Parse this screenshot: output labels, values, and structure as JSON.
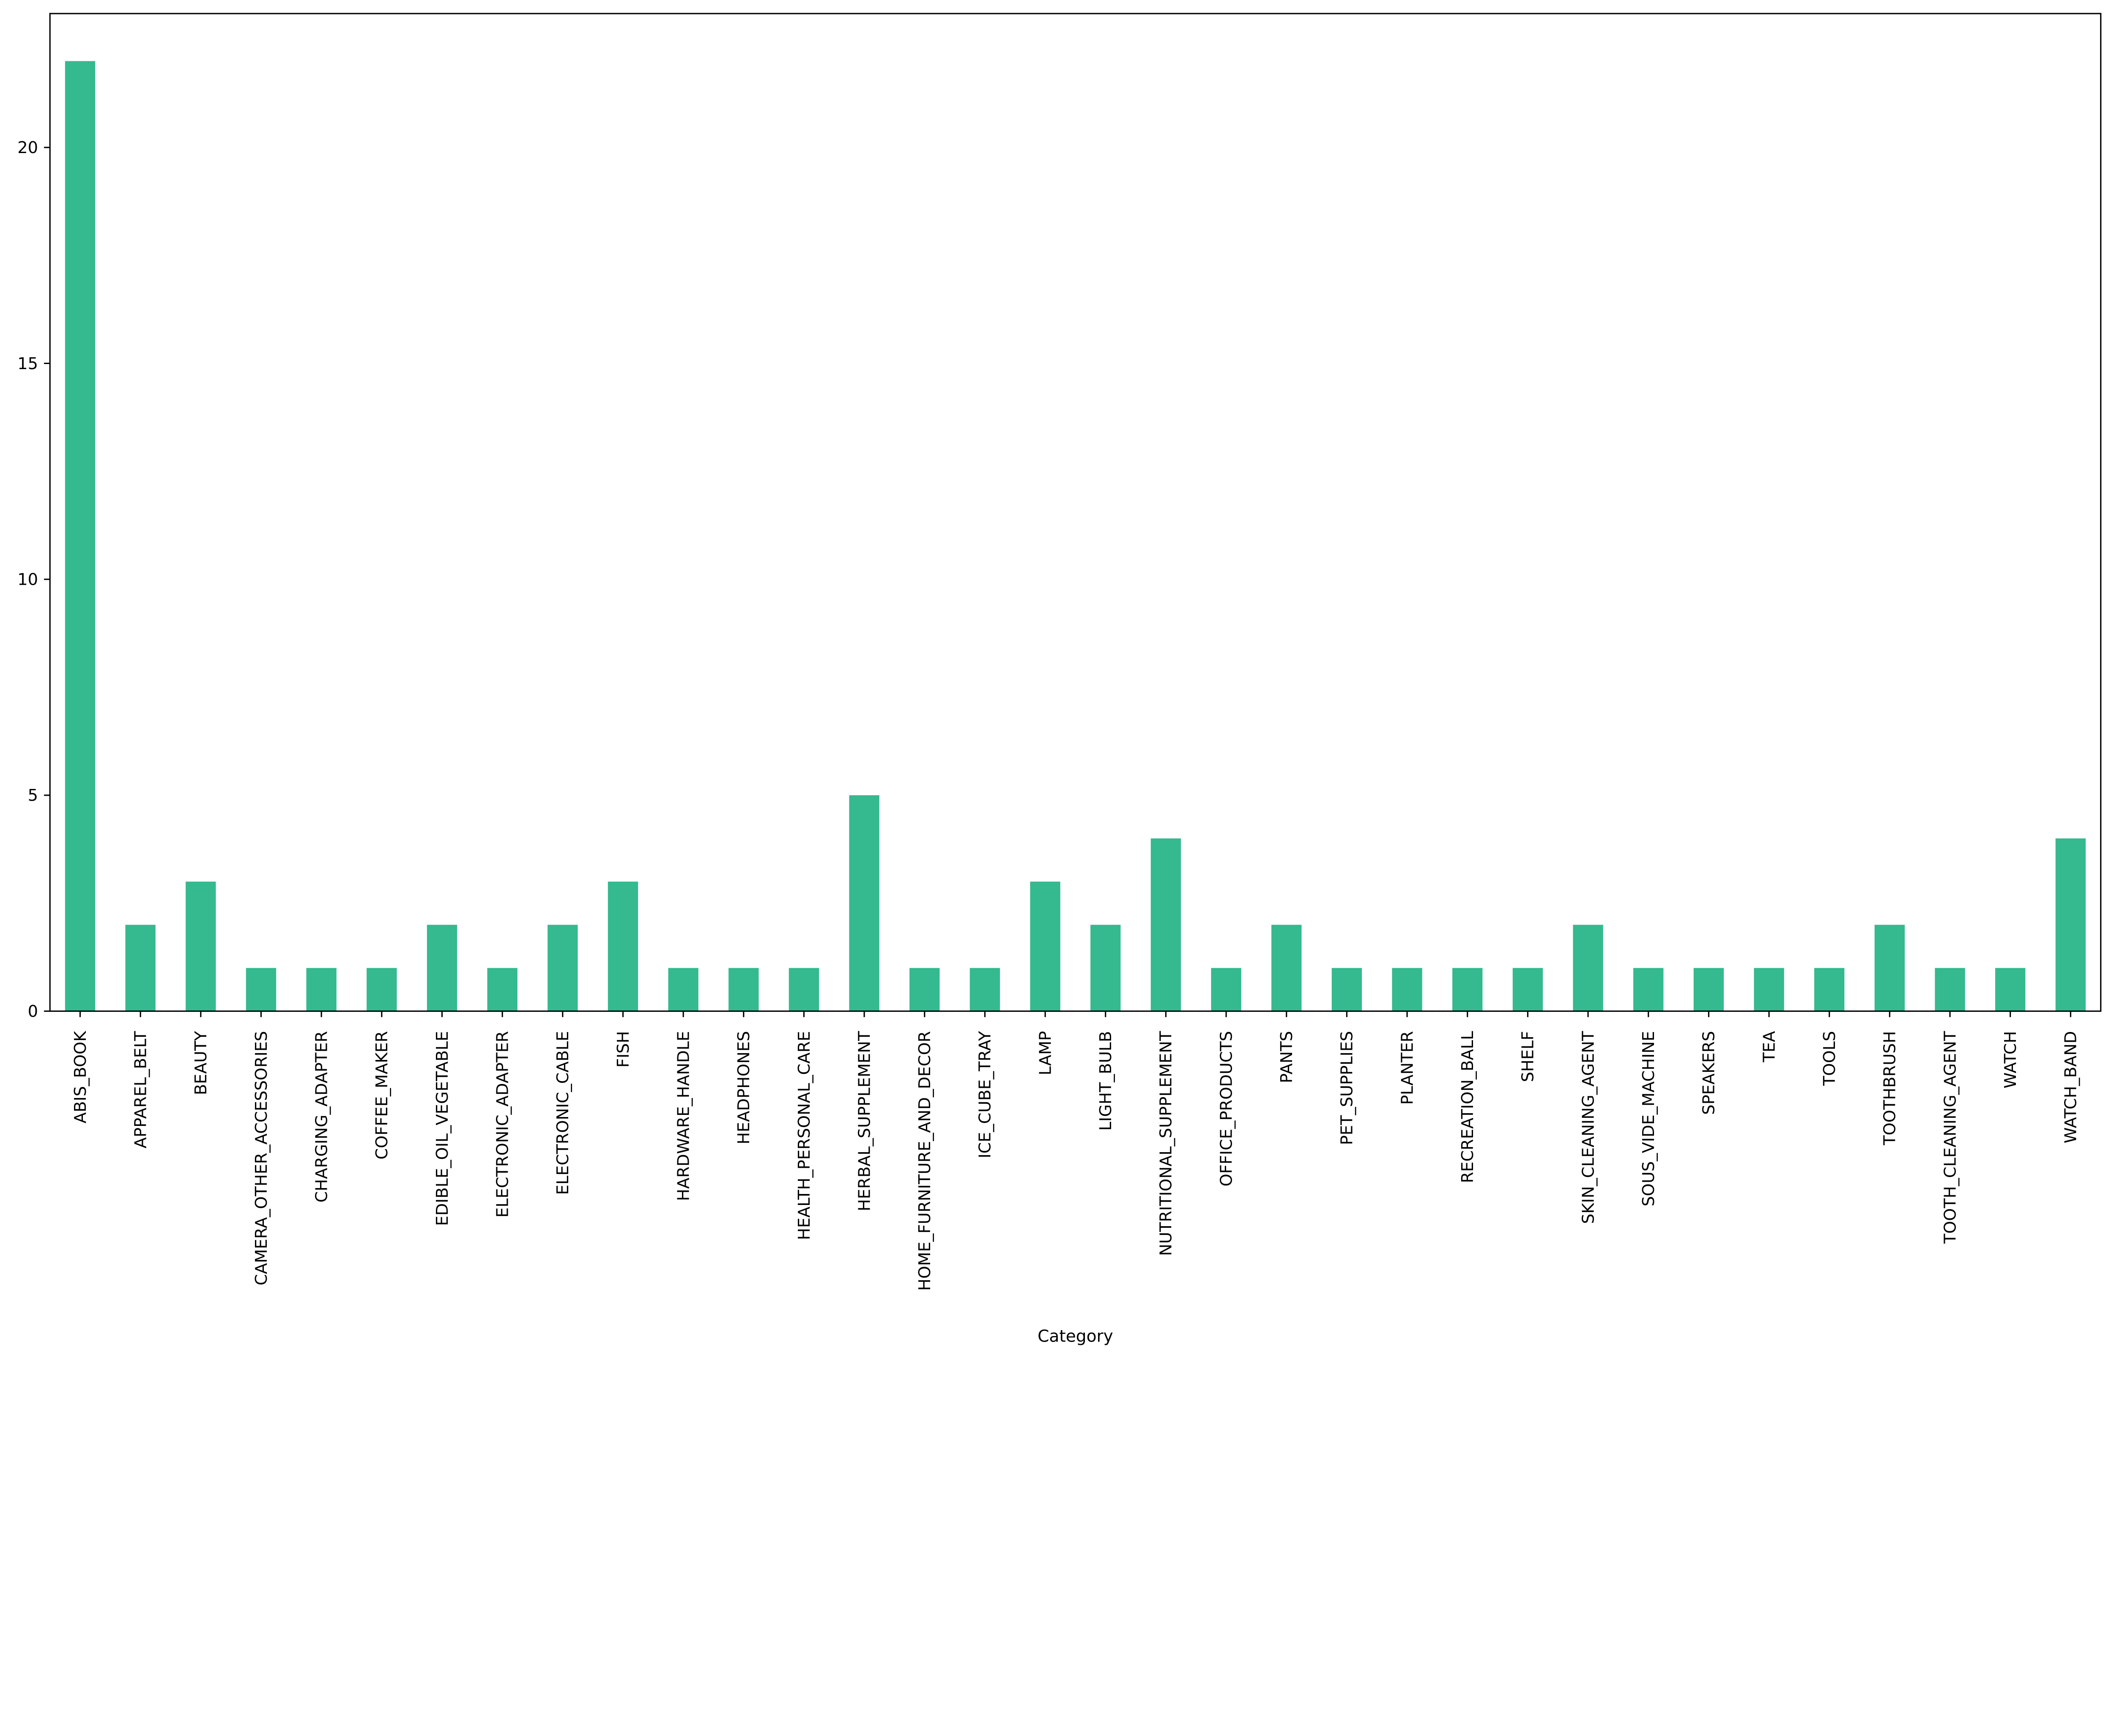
{
  "chart_data": {
    "type": "bar",
    "title": "",
    "xlabel": "Category",
    "ylabel": "",
    "ylim": [
      0,
      23.1
    ],
    "yticks": [
      0,
      5,
      10,
      15,
      20
    ],
    "grid": false,
    "bar_color": "#35b98f",
    "categories": [
      "ABIS_BOOK",
      "APPAREL_BELT",
      "BEAUTY",
      "CAMERA_OTHER_ACCESSORIES",
      "CHARGING_ADAPTER",
      "COFFEE_MAKER",
      "EDIBLE_OIL_VEGETABLE",
      "ELECTRONIC_ADAPTER",
      "ELECTRONIC_CABLE",
      "FISH",
      "HARDWARE_HANDLE",
      "HEADPHONES",
      "HEALTH_PERSONAL_CARE",
      "HERBAL_SUPPLEMENT",
      "HOME_FURNITURE_AND_DECOR",
      "ICE_CUBE_TRAY",
      "LAMP",
      "LIGHT_BULB",
      "NUTRITIONAL_SUPPLEMENT",
      "OFFICE_PRODUCTS",
      "PANTS",
      "PET_SUPPLIES",
      "PLANTER",
      "RECREATION_BALL",
      "SHELF",
      "SKIN_CLEANING_AGENT",
      "SOUS_VIDE_MACHINE",
      "SPEAKERS",
      "TEA",
      "TOOLS",
      "TOOTHBRUSH",
      "TOOTH_CLEANING_AGENT",
      "WATCH",
      "WATCH_BAND"
    ],
    "values": [
      22,
      2,
      3,
      1,
      1,
      1,
      2,
      1,
      2,
      3,
      1,
      1,
      1,
      5,
      1,
      1,
      3,
      2,
      4,
      1,
      2,
      1,
      1,
      1,
      1,
      2,
      1,
      1,
      1,
      1,
      2,
      1,
      1,
      4
    ]
  }
}
